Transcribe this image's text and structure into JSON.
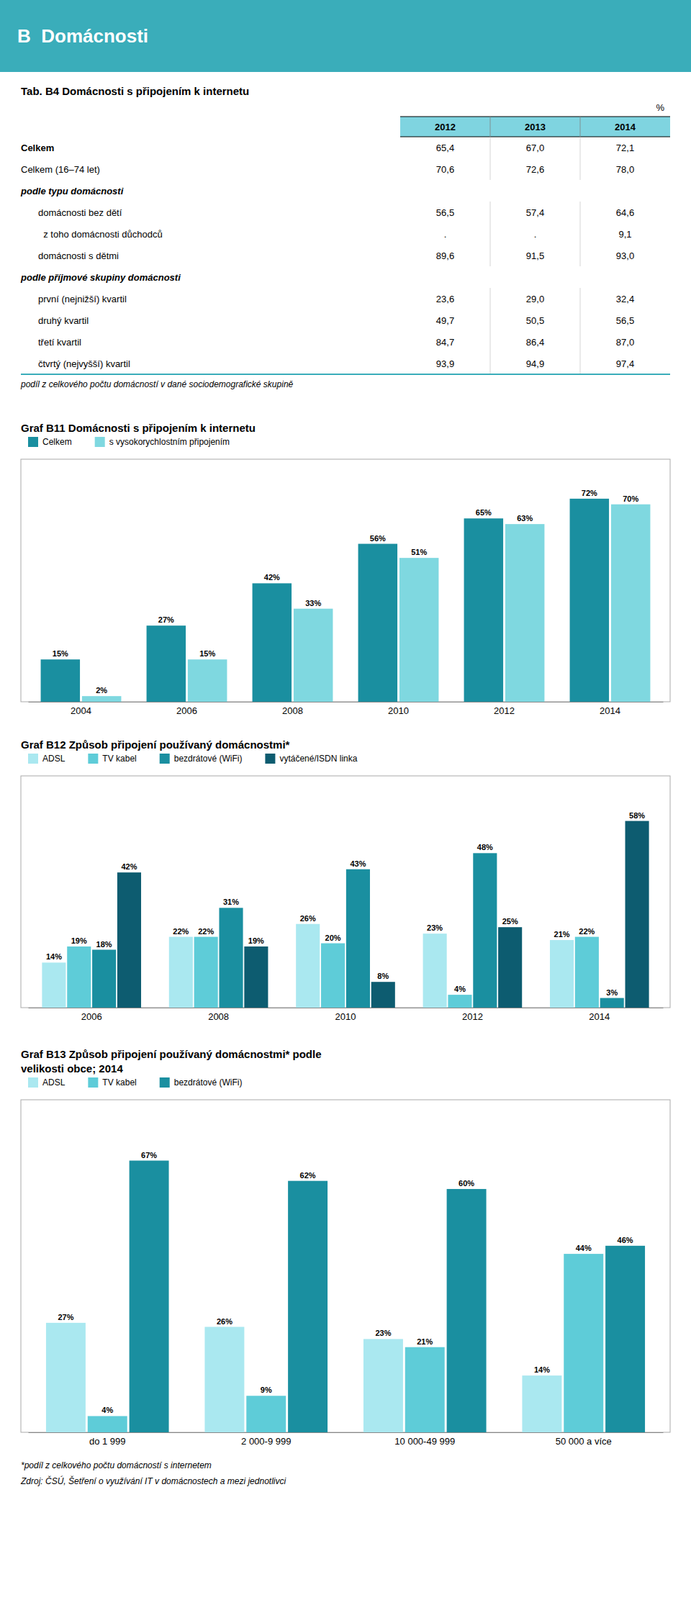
{
  "title": "B  Domácnosti",
  "chart_data": [
    {
      "type": "table",
      "title": "Tab. B4 Domácnosti s připojením k internetu",
      "unit": "%",
      "columns": [
        "2012",
        "2013",
        "2014"
      ],
      "rows": [
        {
          "label": "Celkem",
          "values": [
            65.4,
            67.0,
            72.1
          ],
          "value_labels": [
            "65,4",
            "67,0",
            "72,1"
          ]
        },
        {
          "label": "Celkem (16–74 let)",
          "values": [
            70.6,
            72.6,
            78.0
          ],
          "value_labels": [
            "70,6",
            "72,6",
            "78,0"
          ]
        },
        {
          "label": "podle typu domácnosti"
        },
        {
          "label": "domácnosti bez dětí",
          "values": [
            56.5,
            57.4,
            64.6
          ],
          "value_labels": [
            "56,5",
            "57,4",
            "64,6"
          ]
        },
        {
          "label": "  z toho domácnosti důchodců",
          "values": [
            null,
            null,
            9.1
          ],
          "value_labels": [
            ".",
            ".",
            "9,1"
          ]
        },
        {
          "label": "domácnosti s dětmi",
          "values": [
            89.6,
            91.5,
            93.0
          ],
          "value_labels": [
            "89,6",
            "91,5",
            "93,0"
          ]
        },
        {
          "label": "podle příjmové skupiny domácnosti"
        },
        {
          "label": "první (nejnižší) kvartil",
          "values": [
            23.6,
            29.0,
            32.4
          ],
          "value_labels": [
            "23,6",
            "29,0",
            "32,4"
          ]
        },
        {
          "label": "druhý kvartil",
          "values": [
            49.7,
            50.5,
            56.5
          ],
          "value_labels": [
            "49,7",
            "50,5",
            "56,5"
          ]
        },
        {
          "label": "třetí kvartil",
          "values": [
            84.7,
            86.4,
            87.0
          ],
          "value_labels": [
            "84,7",
            "86,4",
            "87,0"
          ]
        },
        {
          "label": "čtvrtý (nejvyšší) kvartil",
          "values": [
            93.9,
            94.9,
            97.4
          ],
          "value_labels": [
            "93,9",
            "94,9",
            "97,4"
          ]
        }
      ],
      "footnote": "podíl z celkového počtu domácností v dané sociodemografické skupině"
    },
    {
      "type": "bar",
      "title": "Graf B11 Domácnosti s připojením k internetu",
      "categories": [
        "2004",
        "2006",
        "2008",
        "2010",
        "2012",
        "2014"
      ],
      "series": [
        {
          "name": "Celkem",
          "color": "#1a8fa0",
          "values": [
            15,
            27,
            42,
            56,
            65,
            72
          ],
          "value_labels": [
            "15%",
            "27%",
            "42%",
            "56%",
            "65%",
            "72%"
          ]
        },
        {
          "name": "s vysokorychlostním připojením",
          "color": "#7fd8e0",
          "values": [
            2,
            15,
            33,
            51,
            63,
            70
          ],
          "value_labels": [
            "2%",
            "15%",
            "33%",
            "51%",
            "63%",
            "70%"
          ]
        }
      ],
      "ylim": [
        0,
        86
      ],
      "data_labels": true,
      "tick_labels": "x",
      "grid": false,
      "legend": "top"
    },
    {
      "type": "bar",
      "title": "Graf B12 Způsob připojení používaný domácnostmi*",
      "categories": [
        "2006",
        "2008",
        "2010",
        "2012",
        "2014"
      ],
      "series": [
        {
          "name": "ADSL",
          "color": "#aae8f0",
          "values": [
            14,
            22,
            26,
            23,
            21
          ],
          "value_labels": [
            "14%",
            "22%",
            "26%",
            "23%",
            "21%"
          ]
        },
        {
          "name": "TV kabel",
          "color": "#5eccd8",
          "values": [
            19,
            22,
            20,
            4,
            22
          ],
          "value_labels": [
            "19%",
            "22%",
            "20%",
            "4%",
            "22%"
          ]
        },
        {
          "name": "bezdrátové (WiFi)",
          "color": "#1a8fa0",
          "values": [
            18,
            31,
            43,
            48,
            3
          ],
          "value_labels": [
            "18%",
            "31%",
            "43%",
            "48%",
            "3%"
          ]
        },
        {
          "name": "vytáčené/ISDN linka",
          "color": "#0d5c70",
          "values": [
            42,
            19,
            8,
            25,
            58
          ],
          "value_labels": [
            "42%",
            "19%",
            "8%",
            "25%",
            "58%"
          ]
        }
      ],
      "ylim": [
        0,
        72
      ],
      "data_labels": true,
      "tick_labels": "x",
      "grid": false,
      "legend": "top"
    },
    {
      "type": "bar",
      "title": "Graf B13 Způsob připojení používaný domácnostmi* podle\nvelikosti obce; 2014",
      "categories": [
        "do 1 999",
        "2 000-9 999",
        "10 000-49 999",
        "50 000 a více"
      ],
      "series": [
        {
          "name": "ADSL",
          "color": "#aae8f0",
          "values": [
            27,
            26,
            23,
            14
          ],
          "value_labels": [
            "27%",
            "26%",
            "23%",
            "14%"
          ]
        },
        {
          "name": "TV kabel",
          "color": "#5eccd8",
          "values": [
            4,
            9,
            21,
            44
          ],
          "value_labels": [
            "4%",
            "9%",
            "21%",
            "44%"
          ]
        },
        {
          "name": "bezdrátové (WiFi)",
          "color": "#1a8fa0",
          "values": [
            67,
            62,
            60,
            46
          ],
          "value_labels": [
            "67%",
            "62%",
            "60%",
            "46%"
          ]
        }
      ],
      "ylim": [
        0,
        82
      ],
      "data_labels": true,
      "tick_labels": "x",
      "grid": false,
      "legend": "top"
    }
  ],
  "footnotes": [
    "*podíl z celkového počtu domácností s internetem",
    "Zdroj: ČSÚ, Šetření o využívání IT v domácnostech a mezi jednotlivci"
  ]
}
